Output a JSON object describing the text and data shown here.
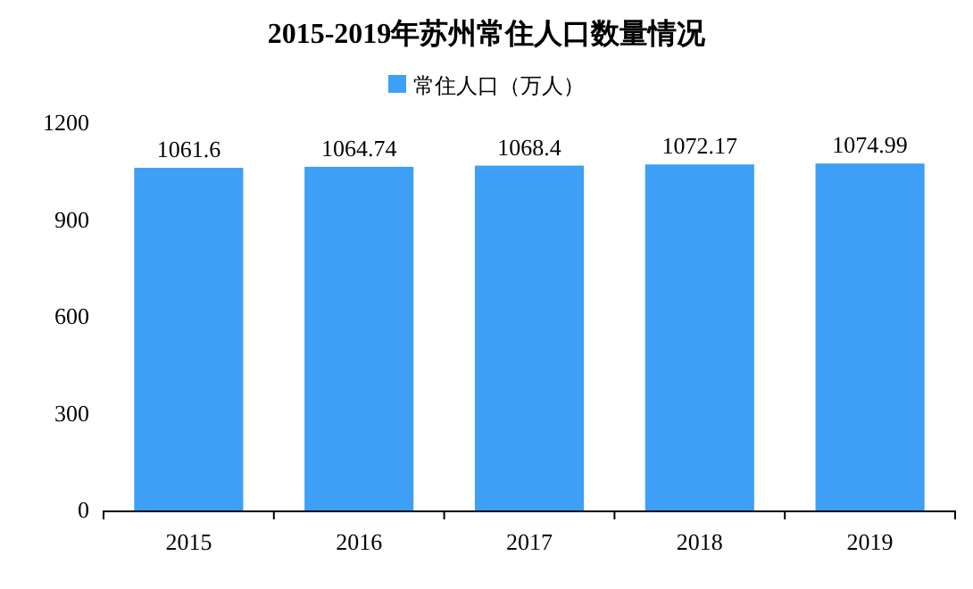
{
  "chart_data": {
    "type": "bar",
    "title": "2015-2019年苏州常住人口数量情况",
    "categories": [
      "2015",
      "2016",
      "2017",
      "2018",
      "2019"
    ],
    "series": [
      {
        "name": "常住人口（万人）",
        "color": "#3d9ff5",
        "values": [
          1061.6,
          1064.74,
          1068.4,
          1072.17,
          1074.99
        ]
      }
    ],
    "ylim": [
      0,
      1200
    ],
    "yticks": [
      0,
      300,
      600,
      900,
      1200
    ],
    "data_labels": true,
    "legend": "top"
  }
}
